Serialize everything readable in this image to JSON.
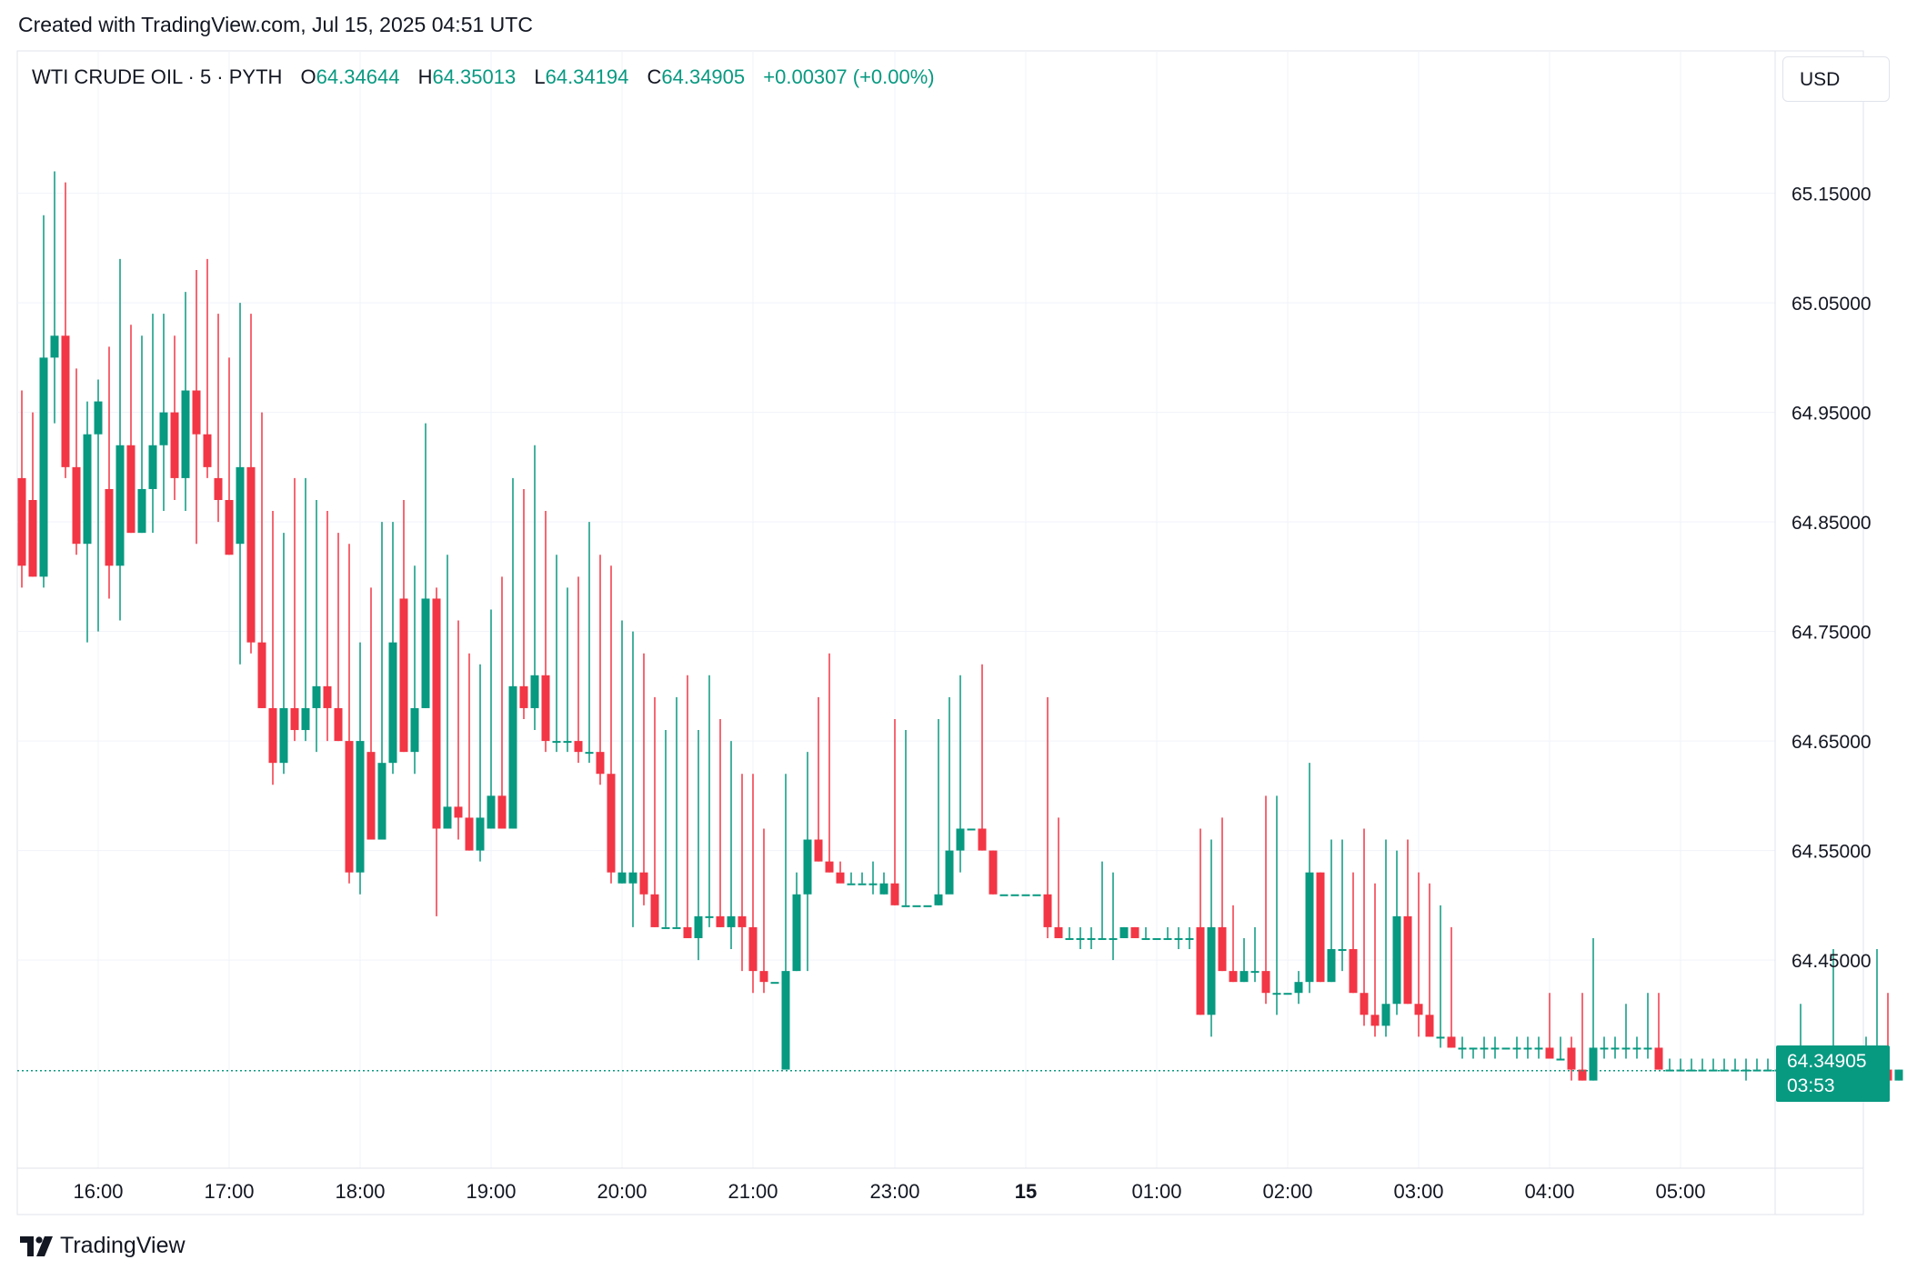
{
  "header": {
    "created_text": "Created with TradingView.com, Jul 15, 2025 04:51 UTC"
  },
  "legend": {
    "symbol": "WTI CRUDE OIL · 5 · PYTH",
    "o_label": "O",
    "o_value": "64.34644",
    "h_label": "H",
    "h_value": "64.35013",
    "l_label": "L",
    "l_value": "64.34194",
    "c_label": "C",
    "c_value": "64.34905",
    "change": "+0.00307 (+0.00%)"
  },
  "currency_button": "USD",
  "last_price": {
    "value": "64.34905",
    "countdown": "03:53"
  },
  "footer": {
    "brand": "TradingView"
  },
  "colors": {
    "up": "#089981",
    "down": "#f23645",
    "grid": "#f0f3fa",
    "text": "#131722"
  },
  "chart_data": {
    "type": "candlestick",
    "ylim": [
      64.26,
      65.28
    ],
    "y_ticks": [
      "65.15000",
      "65.05000",
      "64.95000",
      "64.85000",
      "64.75000",
      "64.65000",
      "64.55000",
      "64.45000"
    ],
    "x_ticks": [
      {
        "label": "16:00",
        "index": 7
      },
      {
        "label": "17:00",
        "index": 19
      },
      {
        "label": "18:00",
        "index": 31
      },
      {
        "label": "19:00",
        "index": 43
      },
      {
        "label": "20:00",
        "index": 55
      },
      {
        "label": "21:00",
        "index": 67
      },
      {
        "label": "23:00",
        "index": 80
      },
      {
        "label": "15",
        "index": 92,
        "bold": true
      },
      {
        "label": "01:00",
        "index": 104
      },
      {
        "label": "02:00",
        "index": 116
      },
      {
        "label": "03:00",
        "index": 128
      },
      {
        "label": "04:00",
        "index": 140
      },
      {
        "label": "05:00",
        "index": 152
      }
    ],
    "candles": [
      [
        64.89,
        64.97,
        64.79,
        64.81
      ],
      [
        64.87,
        64.95,
        64.8,
        64.8
      ],
      [
        64.8,
        65.13,
        64.79,
        65.0
      ],
      [
        65.0,
        65.17,
        64.94,
        65.02
      ],
      [
        65.02,
        65.16,
        64.89,
        64.9
      ],
      [
        64.9,
        64.99,
        64.82,
        64.83
      ],
      [
        64.83,
        64.96,
        64.74,
        64.93
      ],
      [
        64.93,
        64.98,
        64.75,
        64.96
      ],
      [
        64.88,
        65.01,
        64.78,
        64.81
      ],
      [
        64.81,
        65.09,
        64.76,
        64.92
      ],
      [
        64.92,
        65.03,
        64.84,
        64.84
      ],
      [
        64.84,
        65.02,
        64.84,
        64.88
      ],
      [
        64.88,
        65.04,
        64.84,
        64.92
      ],
      [
        64.92,
        65.04,
        64.86,
        64.95
      ],
      [
        64.95,
        65.02,
        64.87,
        64.89
      ],
      [
        64.89,
        65.06,
        64.86,
        64.97
      ],
      [
        64.97,
        65.08,
        64.83,
        64.93
      ],
      [
        64.93,
        65.09,
        64.89,
        64.9
      ],
      [
        64.89,
        65.04,
        64.85,
        64.87
      ],
      [
        64.87,
        65.0,
        64.82,
        64.82
      ],
      [
        64.83,
        65.05,
        64.72,
        64.9
      ],
      [
        64.9,
        65.04,
        64.73,
        64.74
      ],
      [
        64.74,
        64.95,
        64.68,
        64.68
      ],
      [
        64.68,
        64.86,
        64.61,
        64.63
      ],
      [
        64.63,
        64.84,
        64.62,
        64.68
      ],
      [
        64.68,
        64.89,
        64.65,
        64.66
      ],
      [
        64.66,
        64.89,
        64.65,
        64.68
      ],
      [
        64.68,
        64.87,
        64.64,
        64.7
      ],
      [
        64.7,
        64.86,
        64.65,
        64.68
      ],
      [
        64.68,
        64.84,
        64.65,
        64.65
      ],
      [
        64.65,
        64.83,
        64.52,
        64.53
      ],
      [
        64.53,
        64.74,
        64.51,
        64.65
      ],
      [
        64.64,
        64.79,
        64.56,
        64.56
      ],
      [
        64.56,
        64.85,
        64.56,
        64.63
      ],
      [
        64.63,
        64.85,
        64.62,
        64.74
      ],
      [
        64.78,
        64.87,
        64.64,
        64.64
      ],
      [
        64.64,
        64.81,
        64.62,
        64.68
      ],
      [
        64.68,
        64.94,
        64.68,
        64.78
      ],
      [
        64.78,
        64.79,
        64.49,
        64.57
      ],
      [
        64.57,
        64.82,
        64.57,
        64.59
      ],
      [
        64.59,
        64.76,
        64.56,
        64.58
      ],
      [
        64.58,
        64.73,
        64.55,
        64.55
      ],
      [
        64.55,
        64.72,
        64.54,
        64.58
      ],
      [
        64.57,
        64.77,
        64.57,
        64.6
      ],
      [
        64.6,
        64.8,
        64.57,
        64.57
      ],
      [
        64.57,
        64.89,
        64.57,
        64.7
      ],
      [
        64.7,
        64.88,
        64.67,
        64.68
      ],
      [
        64.68,
        64.92,
        64.66,
        64.71
      ],
      [
        64.71,
        64.86,
        64.64,
        64.65
      ],
      [
        64.65,
        64.82,
        64.64,
        64.65
      ],
      [
        64.65,
        64.79,
        64.64,
        64.65
      ],
      [
        64.65,
        64.8,
        64.63,
        64.64
      ],
      [
        64.64,
        64.85,
        64.63,
        64.64
      ],
      [
        64.64,
        64.82,
        64.61,
        64.62
      ],
      [
        64.62,
        64.81,
        64.52,
        64.53
      ],
      [
        64.52,
        64.76,
        64.52,
        64.53
      ],
      [
        64.52,
        64.75,
        64.48,
        64.53
      ],
      [
        64.53,
        64.73,
        64.5,
        64.51
      ],
      [
        64.51,
        64.69,
        64.48,
        64.48
      ],
      [
        64.48,
        64.66,
        64.48,
        64.48
      ],
      [
        64.48,
        64.69,
        64.48,
        64.48
      ],
      [
        64.48,
        64.71,
        64.47,
        64.47
      ],
      [
        64.47,
        64.66,
        64.45,
        64.49
      ],
      [
        64.49,
        64.71,
        64.48,
        64.49
      ],
      [
        64.49,
        64.67,
        64.48,
        64.48
      ],
      [
        64.48,
        64.65,
        64.46,
        64.49
      ],
      [
        64.49,
        64.62,
        64.44,
        64.48
      ],
      [
        64.48,
        64.62,
        64.42,
        64.44
      ],
      [
        64.44,
        64.57,
        64.42,
        64.43
      ],
      [
        64.43,
        64.43,
        64.43,
        64.43
      ],
      [
        64.35,
        64.62,
        64.35,
        64.44
      ],
      [
        64.44,
        64.53,
        64.44,
        64.51
      ],
      [
        64.51,
        64.64,
        64.44,
        64.56
      ],
      [
        64.56,
        64.69,
        64.54,
        64.54
      ],
      [
        64.54,
        64.73,
        64.53,
        64.53
      ],
      [
        64.53,
        64.54,
        64.53,
        64.52
      ],
      [
        64.52,
        64.53,
        64.52,
        64.52
      ],
      [
        64.52,
        64.53,
        64.52,
        64.52
      ],
      [
        64.52,
        64.54,
        64.51,
        64.52
      ],
      [
        64.51,
        64.53,
        64.51,
        64.52
      ],
      [
        64.52,
        64.67,
        64.5,
        64.5
      ],
      [
        64.5,
        64.66,
        64.5,
        64.5
      ],
      [
        64.5,
        64.5,
        64.5,
        64.5
      ],
      [
        64.5,
        64.5,
        64.5,
        64.5
      ],
      [
        64.5,
        64.67,
        64.5,
        64.51
      ],
      [
        64.51,
        64.69,
        64.52,
        64.55
      ],
      [
        64.55,
        64.71,
        64.53,
        64.57
      ],
      [
        64.57,
        64.57,
        64.57,
        64.57
      ],
      [
        64.57,
        64.72,
        64.55,
        64.55
      ],
      [
        64.55,
        64.55,
        64.51,
        64.51
      ],
      [
        64.51,
        64.51,
        64.51,
        64.51
      ],
      [
        64.51,
        64.51,
        64.51,
        64.51
      ],
      [
        64.51,
        64.51,
        64.51,
        64.51
      ],
      [
        64.51,
        64.51,
        64.51,
        64.51
      ],
      [
        64.51,
        64.69,
        64.47,
        64.48
      ],
      [
        64.48,
        64.58,
        64.47,
        64.47
      ],
      [
        64.47,
        64.48,
        64.47,
        64.47
      ],
      [
        64.47,
        64.48,
        64.46,
        64.47
      ],
      [
        64.47,
        64.48,
        64.46,
        64.47
      ],
      [
        64.47,
        64.54,
        64.47,
        64.47
      ],
      [
        64.47,
        64.53,
        64.45,
        64.47
      ],
      [
        64.47,
        64.48,
        64.47,
        64.48
      ],
      [
        64.48,
        64.48,
        64.47,
        64.47
      ],
      [
        64.47,
        64.48,
        64.47,
        64.47
      ],
      [
        64.47,
        64.47,
        64.47,
        64.47
      ],
      [
        64.47,
        64.48,
        64.47,
        64.47
      ],
      [
        64.47,
        64.48,
        64.46,
        64.47
      ],
      [
        64.47,
        64.48,
        64.46,
        64.47
      ],
      [
        64.48,
        64.57,
        64.4,
        64.4
      ],
      [
        64.4,
        64.56,
        64.38,
        64.48
      ],
      [
        64.48,
        64.58,
        64.44,
        64.44
      ],
      [
        64.44,
        64.5,
        64.43,
        64.43
      ],
      [
        64.43,
        64.47,
        64.43,
        64.44
      ],
      [
        64.44,
        64.48,
        64.43,
        64.44
      ],
      [
        64.44,
        64.6,
        64.41,
        64.42
      ],
      [
        64.42,
        64.6,
        64.4,
        64.42
      ],
      [
        64.42,
        64.42,
        64.42,
        64.42
      ],
      [
        64.42,
        64.44,
        64.41,
        64.43
      ],
      [
        64.43,
        64.63,
        64.42,
        64.53
      ],
      [
        64.53,
        64.53,
        64.43,
        64.43
      ],
      [
        64.43,
        64.56,
        64.43,
        64.46
      ],
      [
        64.46,
        64.56,
        64.44,
        64.46
      ],
      [
        64.46,
        64.53,
        64.42,
        64.42
      ],
      [
        64.42,
        64.57,
        64.39,
        64.4
      ],
      [
        64.4,
        64.52,
        64.38,
        64.39
      ],
      [
        64.39,
        64.56,
        64.38,
        64.41
      ],
      [
        64.41,
        64.55,
        64.4,
        64.49
      ],
      [
        64.49,
        64.56,
        64.41,
        64.41
      ],
      [
        64.41,
        64.53,
        64.38,
        64.4
      ],
      [
        64.4,
        64.52,
        64.38,
        64.38
      ],
      [
        64.38,
        64.5,
        64.37,
        64.38
      ],
      [
        64.38,
        64.48,
        64.37,
        64.37
      ],
      [
        64.37,
        64.38,
        64.36,
        64.37
      ],
      [
        64.37,
        64.37,
        64.36,
        64.37
      ],
      [
        64.37,
        64.38,
        64.36,
        64.37
      ],
      [
        64.37,
        64.38,
        64.36,
        64.37
      ],
      [
        64.37,
        64.37,
        64.37,
        64.37
      ],
      [
        64.37,
        64.38,
        64.36,
        64.37
      ],
      [
        64.37,
        64.38,
        64.36,
        64.37
      ],
      [
        64.37,
        64.38,
        64.36,
        64.37
      ],
      [
        64.37,
        64.42,
        64.36,
        64.36
      ],
      [
        64.36,
        64.38,
        64.36,
        64.36
      ],
      [
        64.37,
        64.38,
        64.34,
        64.35
      ],
      [
        64.35,
        64.42,
        64.34,
        64.34
      ],
      [
        64.34,
        64.47,
        64.34,
        64.37
      ],
      [
        64.37,
        64.38,
        64.36,
        64.37
      ],
      [
        64.37,
        64.38,
        64.36,
        64.37
      ],
      [
        64.37,
        64.41,
        64.36,
        64.37
      ],
      [
        64.37,
        64.38,
        64.36,
        64.37
      ],
      [
        64.37,
        64.42,
        64.36,
        64.37
      ],
      [
        64.37,
        64.42,
        64.35,
        64.35
      ],
      [
        64.35,
        64.36,
        64.35,
        64.35
      ],
      [
        64.35,
        64.36,
        64.35,
        64.35
      ],
      [
        64.35,
        64.36,
        64.35,
        64.35
      ],
      [
        64.35,
        64.36,
        64.35,
        64.35
      ],
      [
        64.35,
        64.36,
        64.35,
        64.35
      ],
      [
        64.35,
        64.36,
        64.35,
        64.35
      ],
      [
        64.35,
        64.36,
        64.35,
        64.35
      ],
      [
        64.35,
        64.36,
        64.34,
        64.35
      ],
      [
        64.35,
        64.36,
        64.35,
        64.35
      ],
      [
        64.35,
        64.36,
        64.35,
        64.35
      ],
      [
        64.35,
        64.36,
        64.34,
        64.35
      ],
      [
        64.35,
        64.36,
        64.35,
        64.35
      ],
      [
        64.35,
        64.41,
        64.34,
        64.35
      ],
      [
        64.35,
        64.36,
        64.35,
        64.35
      ],
      [
        64.35,
        64.36,
        64.35,
        64.35
      ],
      [
        64.35,
        64.46,
        64.34,
        64.35
      ],
      [
        64.35,
        64.36,
        64.34,
        64.35
      ],
      [
        64.35,
        64.36,
        64.34,
        64.35
      ],
      [
        64.35,
        64.38,
        64.34,
        64.35
      ],
      [
        64.35,
        64.46,
        64.34,
        64.35
      ],
      [
        64.35,
        64.42,
        64.34,
        64.34
      ],
      [
        64.34,
        64.35,
        64.34,
        64.35
      ]
    ],
    "last_value": 64.34905
  }
}
